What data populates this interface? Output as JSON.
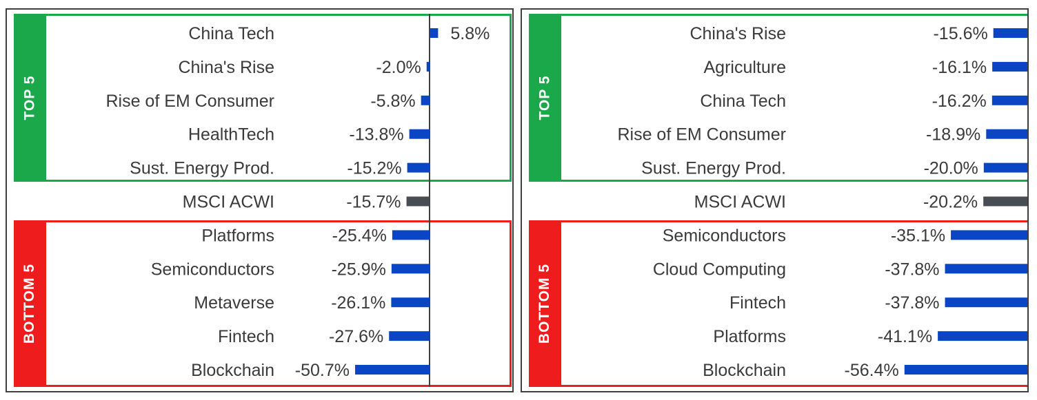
{
  "colors": {
    "bar": "#0a45c4",
    "benchmark_bar": "#474d52",
    "top_group": "#1aa84a",
    "bottom_group": "#ee1c1c",
    "text": "#3a3a3a",
    "axis": "#3f3f3f"
  },
  "groups": {
    "top_label": "TOP 5",
    "bottom_label": "BOTTOM 5"
  },
  "chart_data": [
    {
      "type": "bar",
      "orientation": "horizontal",
      "categories": [
        "China Tech",
        "China's Rise",
        "Rise of EM Consumer",
        "HealthTech",
        "Sust. Energy Prod.",
        "MSCI ACWI",
        "Platforms",
        "Semiconductors",
        "Metaverse",
        "Fintech",
        "Blockchain"
      ],
      "values": [
        5.8,
        -2.0,
        -5.8,
        -13.8,
        -15.2,
        -15.7,
        -25.4,
        -25.9,
        -26.1,
        -27.6,
        -50.7
      ],
      "value_labels": [
        "5.8%",
        "-2.0%",
        "-5.8%",
        "-13.8%",
        "-15.2%",
        "-15.7%",
        "-25.4%",
        "-25.9%",
        "-26.1%",
        "-27.6%",
        "-50.7%"
      ],
      "benchmark": "MSCI ACWI",
      "xlim": [
        -60,
        7
      ]
    },
    {
      "type": "bar",
      "orientation": "horizontal",
      "categories": [
        "China's Rise",
        "Agriculture",
        "China Tech",
        "Rise of EM Consumer",
        "Sust. Energy Prod.",
        "MSCI ACWI",
        "Semiconductors",
        "Cloud Computing",
        "Fintech",
        "Platforms",
        "Blockchain"
      ],
      "values": [
        -15.6,
        -16.1,
        -16.2,
        -18.9,
        -20.0,
        -20.2,
        -35.1,
        -37.8,
        -37.8,
        -41.1,
        -56.4
      ],
      "value_labels": [
        "-15.6%",
        "-16.1%",
        "-16.2%",
        "-18.9%",
        "-20.0%",
        "-20.2%",
        "-35.1%",
        "-37.8%",
        "-37.8%",
        "-41.1%",
        "-56.4%"
      ],
      "benchmark": "MSCI ACWI",
      "xlim": [
        -60,
        0
      ]
    }
  ]
}
